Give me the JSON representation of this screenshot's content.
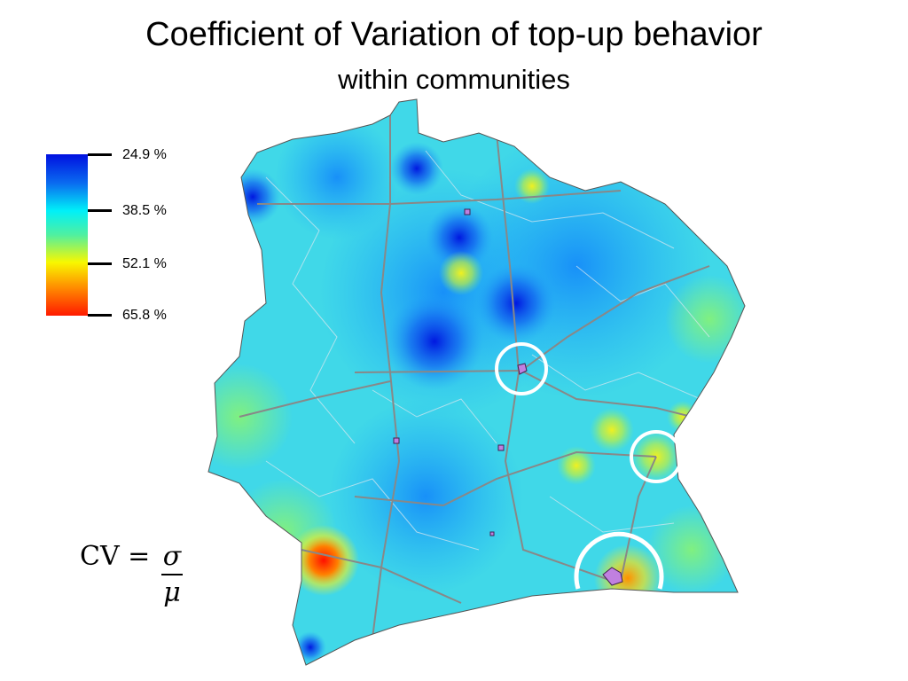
{
  "title": "Coefficient of Variation of top-up behavior",
  "subtitle": "within communities",
  "legend": {
    "ticks": [
      "24.9 %",
      "38.5 %",
      "52.1 %",
      "65.8 %"
    ],
    "colors": {
      "low": "#0010e0",
      "mid_low": "#00f0f8",
      "mid_high": "#f8f800",
      "high": "#ff1a00"
    }
  },
  "formula": {
    "lhs": "CV =",
    "numerator": "σ",
    "denominator": "μ"
  },
  "map": {
    "highlight_circle_color": "#ffffff",
    "city_color": "#c080e0",
    "road_color": "#888888"
  }
}
